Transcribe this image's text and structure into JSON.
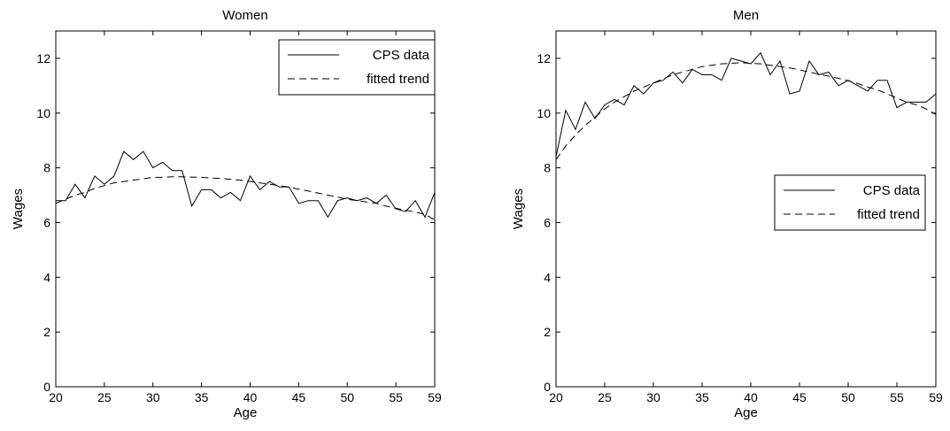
{
  "chart_data": [
    {
      "type": "line",
      "title": "Women",
      "xlabel": "Age",
      "ylabel": "Wages",
      "xlim": [
        20,
        59
      ],
      "ylim": [
        0,
        13
      ],
      "xticks": [
        20,
        25,
        30,
        35,
        40,
        45,
        50,
        55,
        59
      ],
      "yticks": [
        0,
        2,
        4,
        6,
        8,
        10,
        12
      ],
      "legend_position": "top-right",
      "series": [
        {
          "name": "CPS data",
          "style": "solid",
          "x": [
            20,
            21,
            22,
            23,
            24,
            25,
            26,
            27,
            28,
            29,
            30,
            31,
            32,
            33,
            34,
            35,
            36,
            37,
            38,
            39,
            40,
            41,
            42,
            43,
            44,
            45,
            46,
            47,
            48,
            49,
            50,
            51,
            52,
            53,
            54,
            55,
            56,
            57,
            58,
            59
          ],
          "y": [
            6.8,
            6.8,
            7.4,
            6.9,
            7.7,
            7.4,
            7.7,
            8.6,
            8.3,
            8.6,
            8.0,
            8.2,
            7.9,
            7.9,
            6.6,
            7.2,
            7.2,
            6.9,
            7.1,
            6.8,
            7.7,
            7.2,
            7.5,
            7.3,
            7.3,
            6.7,
            6.8,
            6.8,
            6.2,
            6.8,
            6.9,
            6.8,
            6.9,
            6.7,
            7.0,
            6.5,
            6.4,
            6.8,
            6.2,
            7.1
          ]
        },
        {
          "name": "fitted trend",
          "style": "dashed",
          "x": [
            20,
            21,
            22,
            23,
            24,
            25,
            26,
            27,
            28,
            29,
            30,
            31,
            32,
            33,
            34,
            35,
            36,
            37,
            38,
            39,
            40,
            41,
            42,
            43,
            44,
            45,
            46,
            47,
            48,
            49,
            50,
            51,
            52,
            53,
            54,
            55,
            56,
            57,
            58,
            59
          ],
          "y": [
            6.7,
            6.85,
            7.0,
            7.1,
            7.25,
            7.35,
            7.45,
            7.5,
            7.55,
            7.6,
            7.65,
            7.65,
            7.67,
            7.67,
            7.66,
            7.65,
            7.63,
            7.61,
            7.58,
            7.55,
            7.5,
            7.45,
            7.4,
            7.35,
            7.3,
            7.22,
            7.15,
            7.08,
            7.0,
            6.93,
            6.85,
            6.8,
            6.75,
            6.7,
            6.6,
            6.52,
            6.45,
            6.38,
            6.3,
            6.1
          ]
        }
      ]
    },
    {
      "type": "line",
      "title": "Men",
      "xlabel": "Age",
      "ylabel": "Wages",
      "xlim": [
        20,
        59
      ],
      "ylim": [
        0,
        13
      ],
      "xticks": [
        20,
        25,
        30,
        35,
        40,
        45,
        50,
        55,
        59
      ],
      "yticks": [
        0,
        2,
        4,
        6,
        8,
        10,
        12
      ],
      "legend_position": "center-right",
      "series": [
        {
          "name": "CPS data",
          "style": "solid",
          "x": [
            20,
            21,
            22,
            23,
            24,
            25,
            26,
            27,
            28,
            29,
            30,
            31,
            32,
            33,
            34,
            35,
            36,
            37,
            38,
            39,
            40,
            41,
            42,
            43,
            44,
            45,
            46,
            47,
            48,
            49,
            50,
            51,
            52,
            53,
            54,
            55,
            56,
            57,
            58,
            59
          ],
          "y": [
            8.4,
            10.1,
            9.4,
            10.4,
            9.8,
            10.3,
            10.5,
            10.3,
            11.0,
            10.7,
            11.1,
            11.2,
            11.5,
            11.1,
            11.6,
            11.4,
            11.4,
            11.2,
            12.0,
            11.9,
            11.8,
            12.2,
            11.4,
            11.9,
            10.7,
            10.8,
            11.9,
            11.4,
            11.5,
            11.0,
            11.2,
            11.0,
            10.8,
            11.2,
            11.2,
            10.2,
            10.4,
            10.4,
            10.4,
            10.7
          ]
        },
        {
          "name": "fitted trend",
          "style": "dashed",
          "x": [
            20,
            21,
            22,
            23,
            24,
            25,
            26,
            27,
            28,
            29,
            30,
            31,
            32,
            33,
            34,
            35,
            36,
            37,
            38,
            39,
            40,
            41,
            42,
            43,
            44,
            45,
            46,
            47,
            48,
            49,
            50,
            51,
            52,
            53,
            54,
            55,
            56,
            57,
            58,
            59
          ],
          "y": [
            8.3,
            8.8,
            9.2,
            9.55,
            9.85,
            10.15,
            10.4,
            10.6,
            10.8,
            10.95,
            11.1,
            11.25,
            11.4,
            11.5,
            11.6,
            11.7,
            11.75,
            11.8,
            11.82,
            11.84,
            11.82,
            11.8,
            11.75,
            11.7,
            11.65,
            11.58,
            11.5,
            11.42,
            11.35,
            11.27,
            11.18,
            11.08,
            10.95,
            10.85,
            10.7,
            10.55,
            10.4,
            10.3,
            10.15,
            9.95
          ]
        }
      ]
    }
  ]
}
